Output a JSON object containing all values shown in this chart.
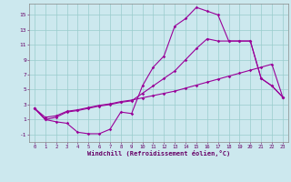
{
  "xlabel": "Windchill (Refroidissement éolien,°C)",
  "bg_color": "#cce8ee",
  "line_color": "#990099",
  "grid_color": "#99cccc",
  "curve1_x": [
    0,
    1,
    2,
    3,
    4,
    5,
    6,
    7,
    8,
    9,
    10,
    11,
    12,
    13,
    14,
    15,
    16,
    17,
    18,
    19,
    20,
    21,
    22,
    23
  ],
  "curve1_y": [
    2.5,
    1.0,
    0.7,
    0.5,
    -0.7,
    -0.9,
    -0.9,
    -0.3,
    2.0,
    1.8,
    5.5,
    8.0,
    9.5,
    13.5,
    14.5,
    16.0,
    15.5,
    15.0,
    11.5,
    11.5,
    11.5,
    6.5,
    5.5,
    4.0
  ],
  "curve2_x": [
    0,
    1,
    2,
    3,
    4,
    5,
    6,
    7,
    8,
    9,
    10,
    11,
    12,
    13,
    14,
    15,
    16,
    17,
    18,
    19,
    20,
    21,
    22,
    23
  ],
  "curve2_y": [
    2.5,
    1.3,
    1.5,
    2.1,
    2.3,
    2.6,
    2.9,
    3.1,
    3.4,
    3.6,
    3.9,
    4.2,
    4.5,
    4.8,
    5.2,
    5.6,
    6.0,
    6.4,
    6.8,
    7.2,
    7.6,
    8.0,
    8.4,
    4.0
  ],
  "curve3_x": [
    0,
    1,
    2,
    3,
    4,
    5,
    6,
    7,
    8,
    9,
    10,
    11,
    12,
    13,
    14,
    15,
    16,
    17,
    18,
    19,
    20,
    21,
    22,
    23
  ],
  "curve3_y": [
    2.5,
    1.0,
    1.3,
    2.0,
    2.2,
    2.5,
    2.8,
    3.0,
    3.3,
    3.5,
    4.5,
    5.5,
    6.5,
    7.5,
    9.0,
    10.5,
    11.8,
    11.5,
    11.5,
    11.5,
    11.5,
    6.5,
    5.5,
    4.0
  ],
  "xlim": [
    -0.5,
    23.5
  ],
  "ylim": [
    -2.0,
    16.5
  ],
  "yticks": [
    -1,
    1,
    3,
    5,
    7,
    9,
    11,
    13,
    15
  ],
  "xticks": [
    0,
    1,
    2,
    3,
    4,
    5,
    6,
    7,
    8,
    9,
    10,
    11,
    12,
    13,
    14,
    15,
    16,
    17,
    18,
    19,
    20,
    21,
    22,
    23
  ],
  "tick_color": "#660066",
  "xlabel_fontsize": 5.0,
  "tick_fontsize": 4.0,
  "marker_size": 1.8,
  "line_width": 0.8
}
